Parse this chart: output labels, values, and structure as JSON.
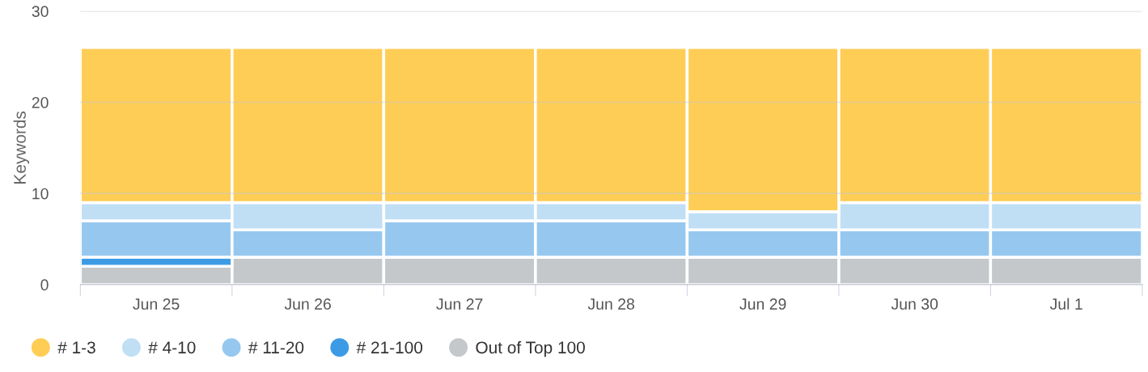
{
  "chart_data": {
    "type": "bar",
    "stacked": true,
    "ylabel": "Keywords",
    "categories": [
      "Jun 25",
      "Jun 26",
      "Jun 27",
      "Jun 28",
      "Jun 29",
      "Jun 30",
      "Jul 1"
    ],
    "series": [
      {
        "name": "Out of Top 100",
        "color": "#c4c8cb",
        "values": [
          2,
          3,
          3,
          3,
          3,
          3,
          3
        ]
      },
      {
        "name": "# 21-100",
        "color": "#3d9be5",
        "values": [
          1,
          0,
          0,
          0,
          0,
          0,
          0
        ]
      },
      {
        "name": "# 11-20",
        "color": "#96c8ef",
        "values": [
          4,
          3,
          4,
          4,
          3,
          3,
          3
        ]
      },
      {
        "name": "# 4-10",
        "color": "#c0dff5",
        "values": [
          2,
          3,
          2,
          2,
          2,
          3,
          3
        ]
      },
      {
        "name": "# 1-3",
        "color": "#fecd55",
        "values": [
          17,
          17,
          17,
          17,
          18,
          17,
          17
        ]
      }
    ],
    "ylim": [
      0,
      30
    ],
    "yticks": [
      0,
      10,
      20,
      30
    ],
    "grid": "y",
    "legend": "bottom left"
  }
}
